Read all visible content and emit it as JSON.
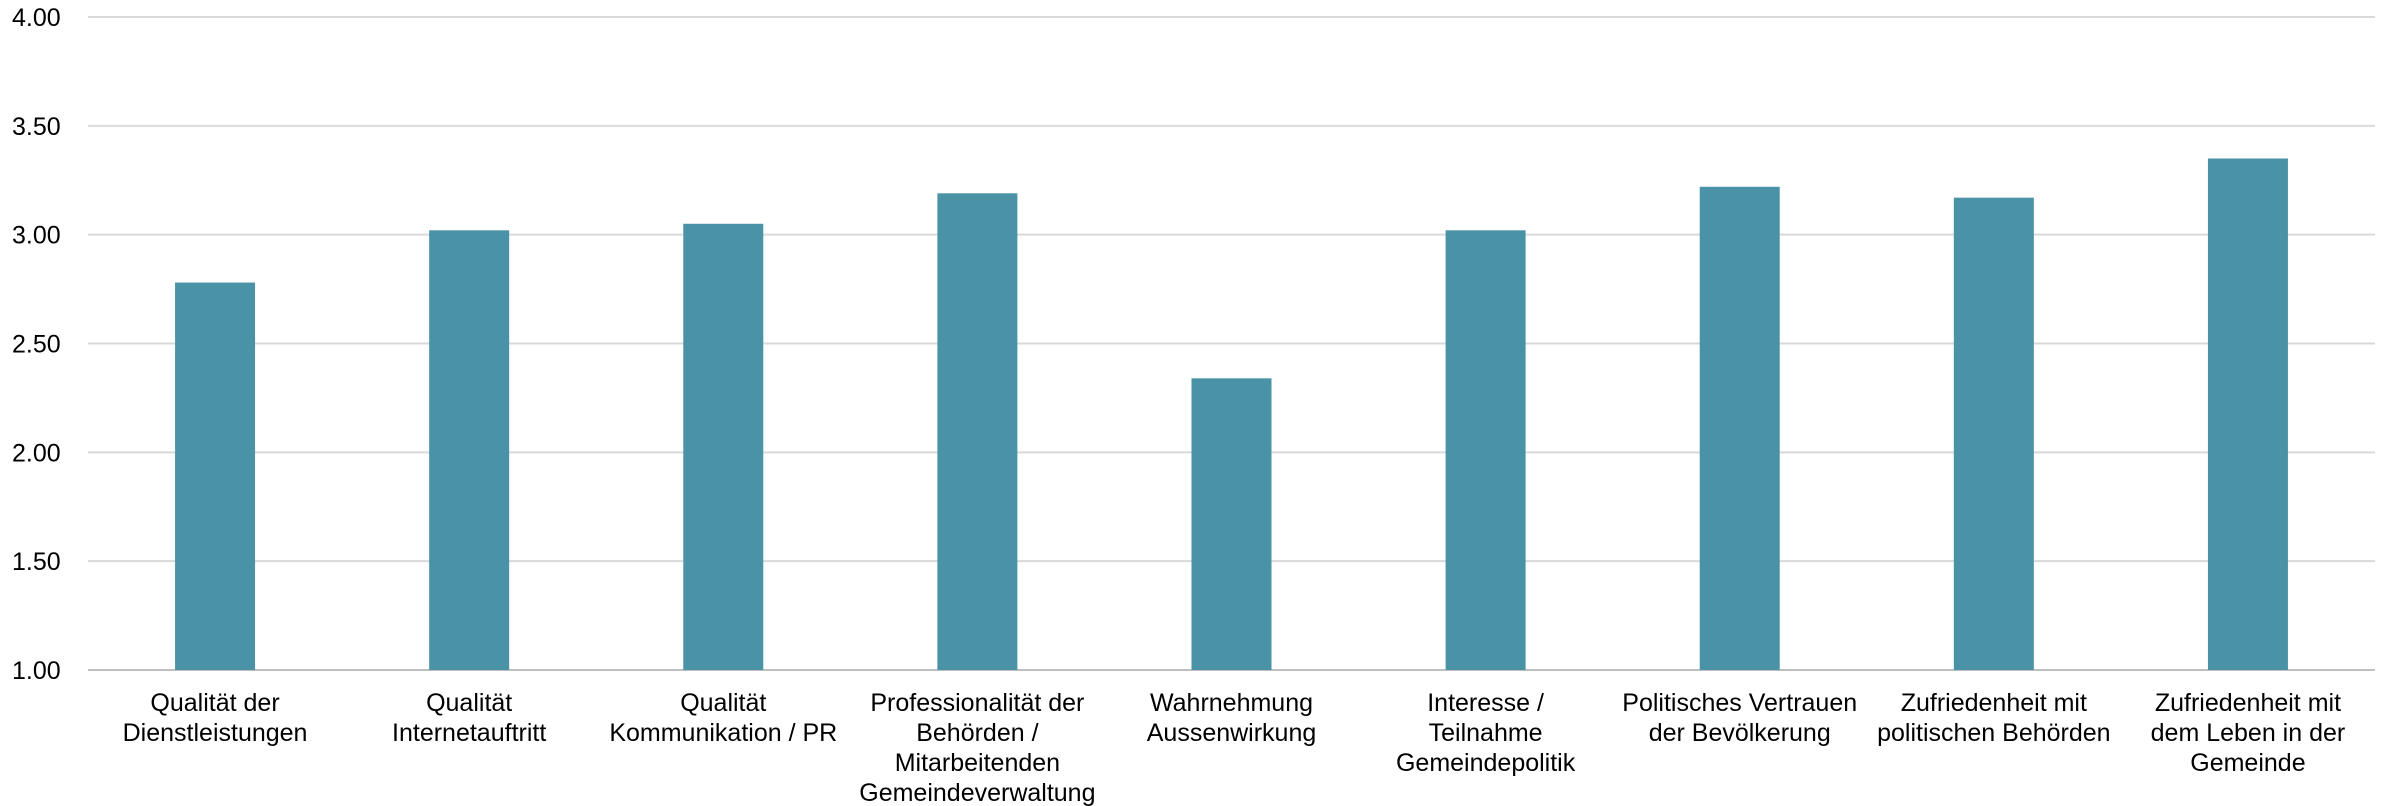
{
  "chart_data": {
    "type": "bar",
    "categories": [
      [
        "Qualität der",
        "Dienstleistungen"
      ],
      [
        "Qualität",
        "Internetauftritt"
      ],
      [
        "Qualität",
        "Kommunikation / PR"
      ],
      [
        "Professionalität der",
        "Behörden /",
        "Mitarbeitenden",
        "Gemeindeverwaltung"
      ],
      [
        "Wahrnehmung",
        "Aussenwirkung"
      ],
      [
        "Interesse /",
        "Teilnahme",
        "Gemeindepolitik"
      ],
      [
        "Politisches Vertrauen",
        "der Bevölkerung"
      ],
      [
        "Zufriedenheit mit",
        "politischen Behörden"
      ],
      [
        "Zufriedenheit mit",
        "dem Leben in der",
        "Gemeinde"
      ]
    ],
    "values": [
      2.78,
      3.02,
      3.05,
      3.19,
      2.34,
      3.02,
      3.22,
      3.17,
      3.35
    ],
    "ylim": [
      1.0,
      4.0
    ],
    "yticks": [
      "1.00",
      "1.50",
      "2.00",
      "2.50",
      "3.00",
      "3.50",
      "4.00"
    ],
    "grid": true,
    "colors": {
      "bar": "#4a92a5",
      "grid": "#d9d9d9",
      "axis": "#bfbfbf"
    }
  }
}
